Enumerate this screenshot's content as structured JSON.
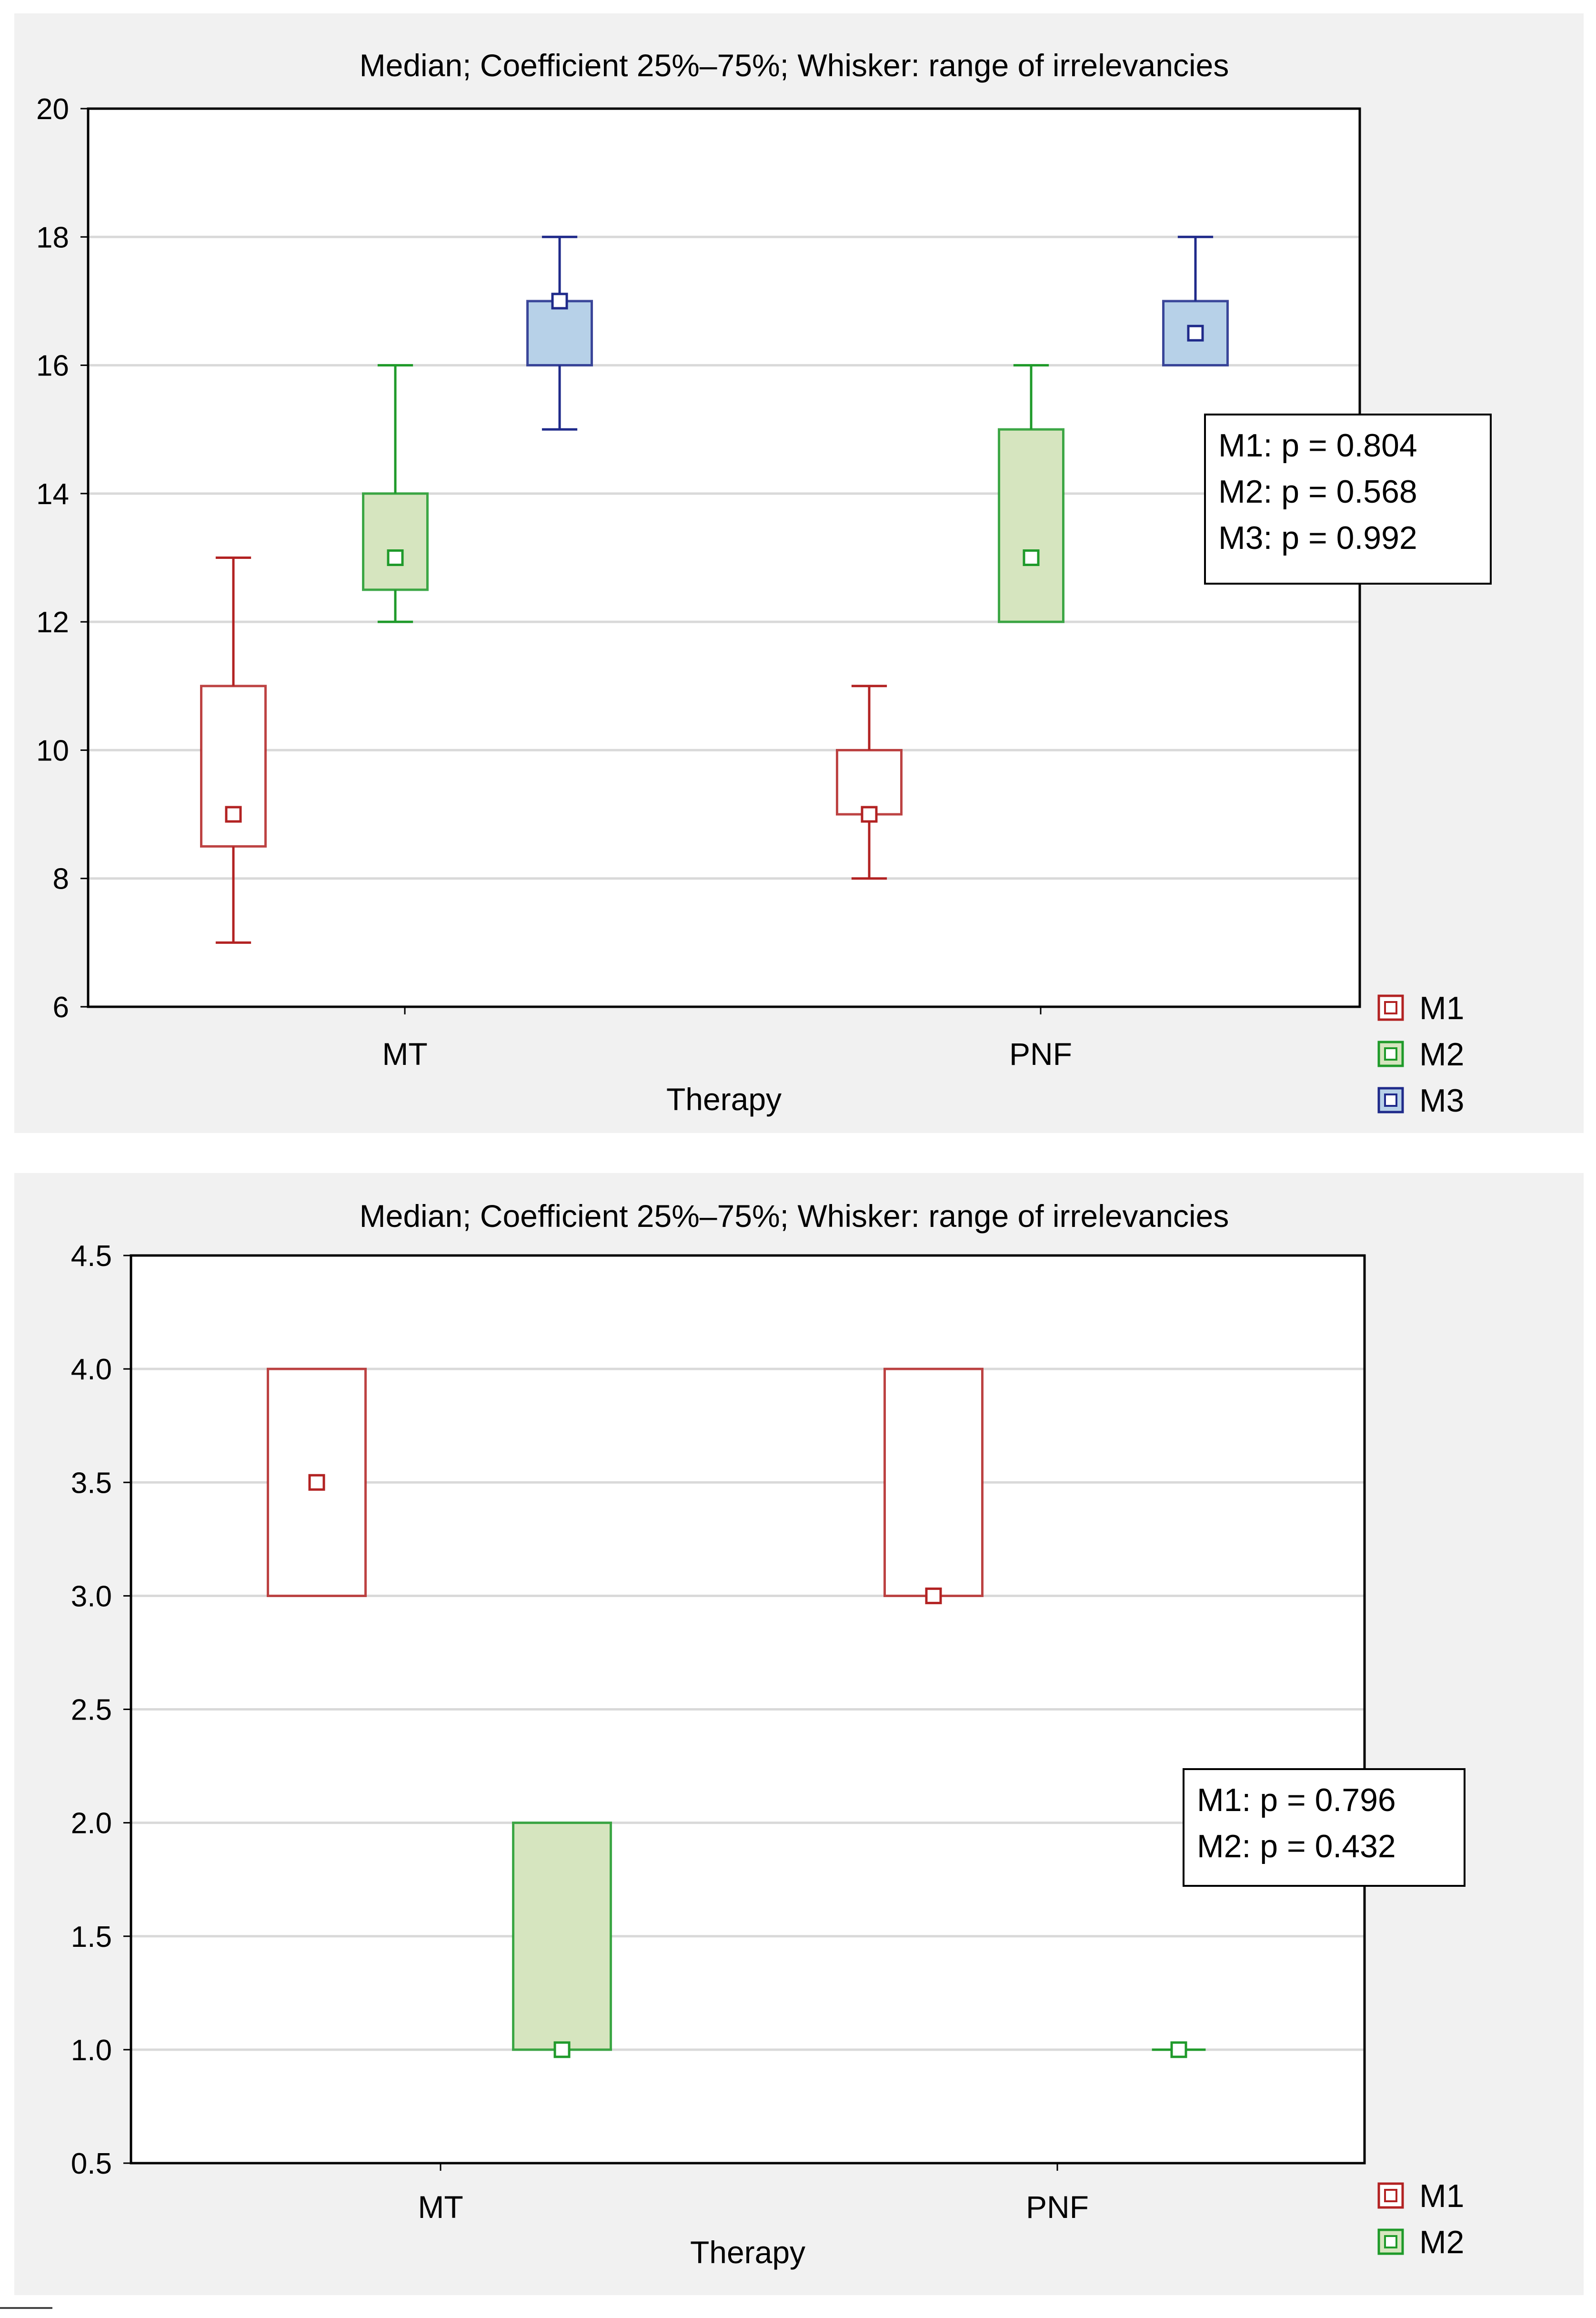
{
  "chart_data": [
    {
      "type": "boxplot",
      "title": "Median; Coefficient 25%–75%; Whisker: range of irrelevancies",
      "xlabel": "Therapy",
      "ylabel": "",
      "ylim": [
        6,
        20
      ],
      "yticks": [
        "6",
        "8",
        "10",
        "12",
        "14",
        "16",
        "18",
        "20"
      ],
      "grid": true,
      "legend": "bottom-right",
      "categories": [
        "MT",
        "PNF"
      ],
      "series": [
        {
          "name": "M1",
          "color": "#b22222",
          "fill": "#ffffff",
          "boxes": [
            {
              "category": "MT",
              "median": 9,
              "q1": 8.5,
              "q3": 11,
              "min": 7,
              "max": 13
            },
            {
              "category": "PNF",
              "median": 9,
              "q1": 9,
              "q3": 10,
              "min": 8,
              "max": 11
            }
          ]
        },
        {
          "name": "M2",
          "color": "#1f9a2a",
          "fill": "#d6e5bf",
          "boxes": [
            {
              "category": "MT",
              "median": 13,
              "q1": 12.5,
              "q3": 14,
              "min": 12,
              "max": 16
            },
            {
              "category": "PNF",
              "median": 13,
              "q1": 12,
              "q3": 15,
              "min": 12,
              "max": 16
            }
          ]
        },
        {
          "name": "M3",
          "color": "#1f2a8a",
          "fill": "#b7d1e8",
          "boxes": [
            {
              "category": "MT",
              "median": 17,
              "q1": 16,
              "q3": 17,
              "min": 15,
              "max": 18
            },
            {
              "category": "PNF",
              "median": 16.5,
              "q1": 16,
              "q3": 17,
              "min": 16,
              "max": 18
            }
          ]
        }
      ],
      "annotations": [
        "M1: p = 0.804",
        "M2: p = 0.568",
        "M3: p = 0.992"
      ]
    },
    {
      "type": "boxplot",
      "title": "Median; Coefficient 25%–75%; Whisker: range of irrelevancies",
      "xlabel": "Therapy",
      "ylabel": "",
      "ylim": [
        0.5,
        4.5
      ],
      "yticks": [
        "0.5",
        "1.0",
        "1.5",
        "2.0",
        "2.5",
        "3.0",
        "3.5",
        "4.0",
        "4.5"
      ],
      "grid": true,
      "legend": "bottom-right",
      "categories": [
        "MT",
        "PNF"
      ],
      "series": [
        {
          "name": "M1",
          "color": "#b22222",
          "fill": "#ffffff",
          "boxes": [
            {
              "category": "MT",
              "median": 3.5,
              "q1": 3,
              "q3": 4,
              "min": 3,
              "max": 4
            },
            {
              "category": "PNF",
              "median": 3,
              "q1": 3,
              "q3": 4,
              "min": 3,
              "max": 4
            }
          ]
        },
        {
          "name": "M2",
          "color": "#1f9a2a",
          "fill": "#d6e5bf",
          "boxes": [
            {
              "category": "MT",
              "median": 1,
              "q1": 1,
              "q3": 2,
              "min": 1,
              "max": 2
            },
            {
              "category": "PNF",
              "median": 1,
              "q1": 1,
              "q3": 1,
              "min": 1,
              "max": 1
            }
          ]
        }
      ],
      "annotations": [
        "M1: p = 0.796",
        "M2: p = 0.432"
      ]
    }
  ]
}
